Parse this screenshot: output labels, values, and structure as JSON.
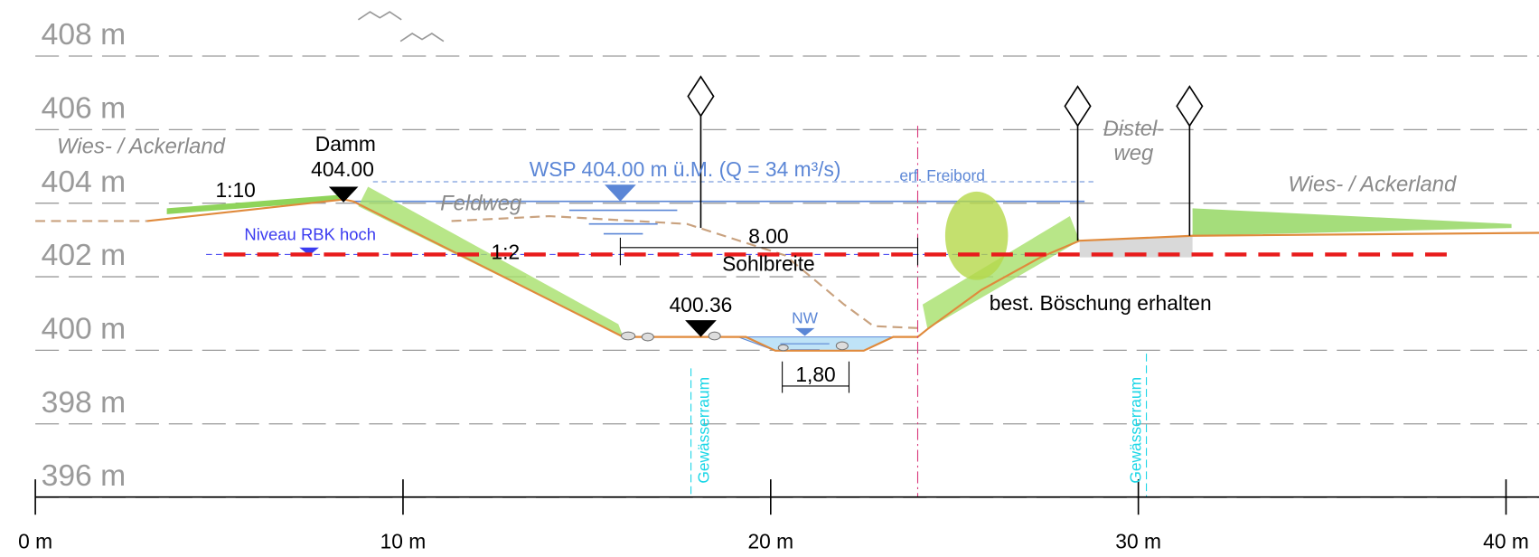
{
  "y_axis": {
    "labels": [
      "408 m",
      "406 m",
      "404 m",
      "402 m",
      "400 m",
      "398 m",
      "396 m"
    ]
  },
  "x_axis": {
    "labels": [
      "0 m",
      "10 m",
      "20 m",
      "30 m",
      "40 m"
    ]
  },
  "annotations": {
    "land_left": "Wies- / Ackerland",
    "dam_title": "Damm",
    "dam_level": "404.00",
    "slope_left": "1:10",
    "path_left": "Feldweg",
    "level_rbk": "Niveau RBK hoch",
    "slope_channel": "1:2",
    "water_level": "WSP 404.00 m ü.M. (Q = 34 m³/s)",
    "freeboard": "erf. Freibord",
    "bed_width_value": "8.00",
    "bed_width_label": "Sohlbreite",
    "bed_level": "400.36",
    "low_water": "NW",
    "low_width": "1,80",
    "water_space_left": "Gewässerraum",
    "water_space_right": "Gewässerraum",
    "path_right_1": "Distel-",
    "path_right_2": "weg",
    "land_right": "Wies- / Ackerland",
    "bank_note": "best. Böschung erhalten"
  }
}
